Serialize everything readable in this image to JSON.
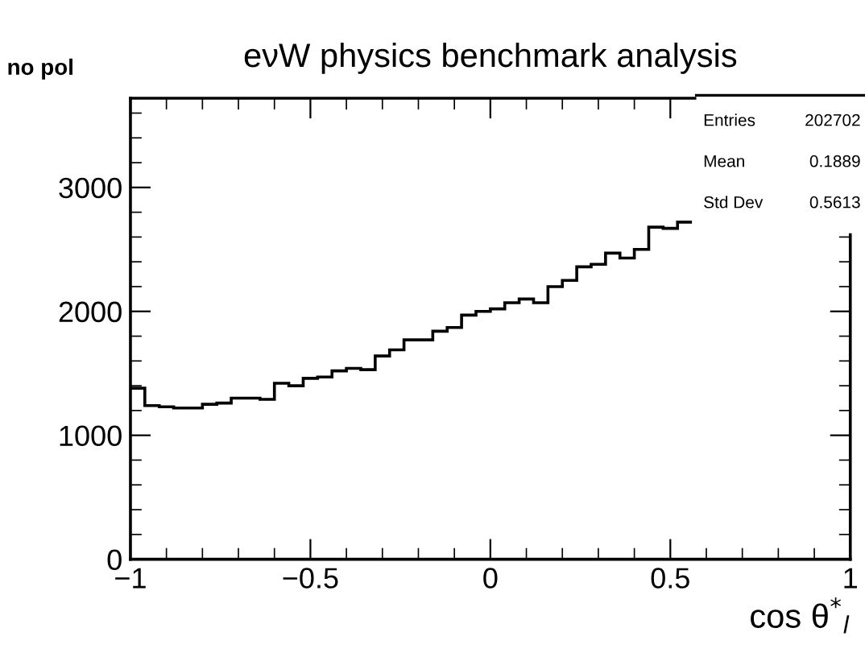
{
  "chart_data": {
    "type": "histogram",
    "title": "eνW physics benchmark analysis",
    "xlabel": "cos θ$^{*}$$_{l}$",
    "bins": [
      -1,
      -0.96,
      -0.92,
      -0.88,
      -0.84,
      -0.8,
      -0.76,
      -0.72,
      -0.68,
      -0.64,
      -0.6,
      -0.56,
      -0.52,
      -0.48,
      -0.44,
      -0.4,
      -0.36,
      -0.32,
      -0.28,
      -0.24,
      -0.2,
      -0.16,
      -0.12,
      -0.08,
      -0.04,
      0,
      0.04,
      0.08,
      0.12,
      0.16,
      0.2,
      0.24,
      0.28,
      0.32,
      0.36,
      0.4,
      0.44,
      0.48,
      0.52,
      0.56
    ],
    "values": [
      1380,
      1240,
      1230,
      1220,
      1220,
      1250,
      1260,
      1300,
      1300,
      1290,
      1420,
      1400,
      1460,
      1470,
      1520,
      1540,
      1530,
      1640,
      1690,
      1770,
      1770,
      1840,
      1870,
      1970,
      2000,
      2020,
      2070,
      2100,
      2070,
      2200,
      2250,
      2360,
      2380,
      2470,
      2430,
      2500,
      2680,
      2670,
      2720
    ],
    "color": "#000000",
    "xlim": [
      -1,
      1
    ],
    "xticks": [
      {
        "value": -1,
        "label": "−1"
      },
      {
        "value": -0.5,
        "label": "−0.5"
      },
      0,
      0.5,
      1
    ],
    "ylim": [
      0,
      3720
    ],
    "yticks": [
      0,
      1000,
      2000,
      3000
    ],
    "grid": false,
    "annotations": [
      "no pol",
      "Entries",
      "202702",
      "Mean",
      "0.1889",
      "Std Dev",
      "0.5613"
    ]
  }
}
